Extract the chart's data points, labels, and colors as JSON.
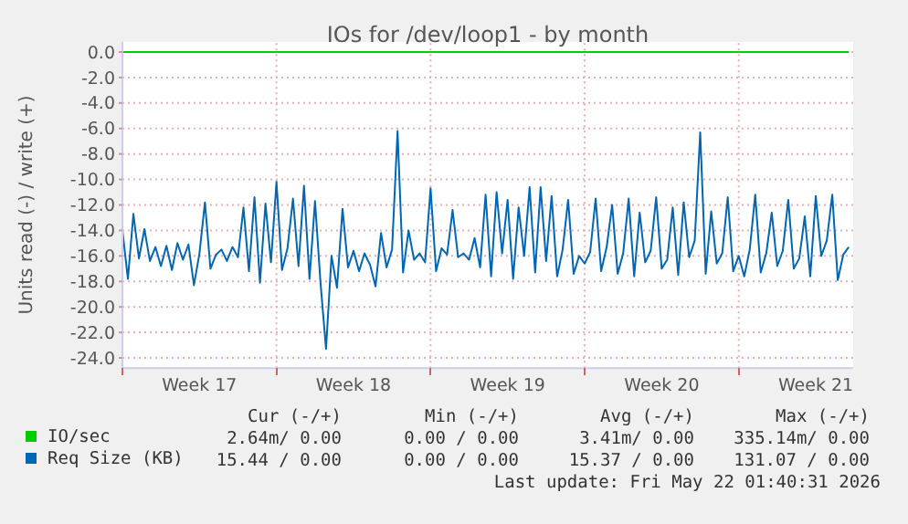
{
  "chart_data": {
    "type": "line",
    "title": "IOs for /dev/loop1 - by month",
    "ylabel": "Units read (-) / write (+)",
    "xlim": [
      "2026-04-20T00:00",
      "2026-05-23T04:48"
    ],
    "xticks": [
      {
        "value": "2026-04-20T00:00",
        "label": null
      },
      {
        "value": "2026-04-23T12:00",
        "label": "Week 17"
      },
      {
        "value": "2026-04-27T00:00",
        "label": null
      },
      {
        "value": "2026-04-30T12:00",
        "label": "Week 18"
      },
      {
        "value": "2026-05-04T00:00",
        "label": null
      },
      {
        "value": "2026-05-07T12:00",
        "label": "Week 19"
      },
      {
        "value": "2026-05-11T00:00",
        "label": null
      },
      {
        "value": "2026-05-14T12:00",
        "label": "Week 20"
      },
      {
        "value": "2026-05-18T00:00",
        "label": null
      },
      {
        "value": "2026-05-21T12:00",
        "label": "Week 21"
      }
    ],
    "ylim": [
      -24.8,
      0.8
    ],
    "yticks": [
      {
        "value": 0,
        "label": "0.0"
      },
      {
        "value": -2,
        "label": "-2.0"
      },
      {
        "value": -4,
        "label": "-4.0"
      },
      {
        "value": -6,
        "label": "-6.0"
      },
      {
        "value": -8,
        "label": "-8.0"
      },
      {
        "value": -10,
        "label": "-10.0"
      },
      {
        "value": -12,
        "label": "-12.0"
      },
      {
        "value": -14,
        "label": "-14.0"
      },
      {
        "value": -16,
        "label": "-16.0"
      },
      {
        "value": -18,
        "label": "-18.0"
      },
      {
        "value": -20,
        "label": "-20.0"
      },
      {
        "value": -22,
        "label": "-22.0"
      },
      {
        "value": -24,
        "label": "-24.0"
      }
    ],
    "grid": true,
    "legend": "bottom",
    "x": [
      "2026-04-20T00:00",
      "2026-04-20T06:00",
      "2026-04-20T12:00",
      "2026-04-20T18:00",
      "2026-04-21T00:00",
      "2026-04-21T06:00",
      "2026-04-21T12:00",
      "2026-04-21T18:00",
      "2026-04-22T00:00",
      "2026-04-22T06:00",
      "2026-04-22T12:00",
      "2026-04-22T18:00",
      "2026-04-23T00:00",
      "2026-04-23T06:00",
      "2026-04-23T12:00",
      "2026-04-23T18:00",
      "2026-04-24T00:00",
      "2026-04-24T06:00",
      "2026-04-24T12:00",
      "2026-04-24T18:00",
      "2026-04-25T00:00",
      "2026-04-25T06:00",
      "2026-04-25T12:00",
      "2026-04-25T18:00",
      "2026-04-26T00:00",
      "2026-04-26T06:00",
      "2026-04-26T12:00",
      "2026-04-26T18:00",
      "2026-04-27T00:00",
      "2026-04-27T06:00",
      "2026-04-27T12:00",
      "2026-04-27T18:00",
      "2026-04-28T00:00",
      "2026-04-28T06:00",
      "2026-04-28T12:00",
      "2026-04-28T18:00",
      "2026-04-29T00:00",
      "2026-04-29T06:00",
      "2026-04-29T12:00",
      "2026-04-29T18:00",
      "2026-04-30T00:00",
      "2026-04-30T06:00",
      "2026-04-30T12:00",
      "2026-04-30T18:00",
      "2026-05-01T00:00",
      "2026-05-01T06:00",
      "2026-05-01T12:00",
      "2026-05-01T18:00",
      "2026-05-02T00:00",
      "2026-05-02T06:00",
      "2026-05-02T12:00",
      "2026-05-02T18:00",
      "2026-05-03T00:00",
      "2026-05-03T06:00",
      "2026-05-03T12:00",
      "2026-05-03T18:00",
      "2026-05-04T00:00",
      "2026-05-04T06:00",
      "2026-05-04T12:00",
      "2026-05-04T18:00",
      "2026-05-05T00:00",
      "2026-05-05T06:00",
      "2026-05-05T12:00",
      "2026-05-05T18:00",
      "2026-05-06T00:00",
      "2026-05-06T06:00",
      "2026-05-06T12:00",
      "2026-05-06T18:00",
      "2026-05-07T00:00",
      "2026-05-07T06:00",
      "2026-05-07T12:00",
      "2026-05-07T18:00",
      "2026-05-08T00:00",
      "2026-05-08T06:00",
      "2026-05-08T12:00",
      "2026-05-08T18:00",
      "2026-05-09T00:00",
      "2026-05-09T06:00",
      "2026-05-09T12:00",
      "2026-05-09T18:00",
      "2026-05-10T00:00",
      "2026-05-10T06:00",
      "2026-05-10T12:00",
      "2026-05-10T18:00",
      "2026-05-11T00:00",
      "2026-05-11T06:00",
      "2026-05-11T12:00",
      "2026-05-11T18:00",
      "2026-05-12T00:00",
      "2026-05-12T06:00",
      "2026-05-12T12:00",
      "2026-05-12T18:00",
      "2026-05-13T00:00",
      "2026-05-13T06:00",
      "2026-05-13T12:00",
      "2026-05-13T18:00",
      "2026-05-14T00:00",
      "2026-05-14T06:00",
      "2026-05-14T12:00",
      "2026-05-14T18:00",
      "2026-05-15T00:00",
      "2026-05-15T06:00",
      "2026-05-15T12:00",
      "2026-05-15T18:00",
      "2026-05-16T00:00",
      "2026-05-16T06:00",
      "2026-05-16T12:00",
      "2026-05-16T18:00",
      "2026-05-17T00:00",
      "2026-05-17T06:00",
      "2026-05-17T12:00",
      "2026-05-17T18:00",
      "2026-05-18T00:00",
      "2026-05-18T06:00",
      "2026-05-18T12:00",
      "2026-05-18T18:00",
      "2026-05-19T00:00",
      "2026-05-19T06:00",
      "2026-05-19T12:00",
      "2026-05-19T18:00",
      "2026-05-20T00:00",
      "2026-05-20T06:00",
      "2026-05-20T12:00",
      "2026-05-20T18:00",
      "2026-05-21T00:00",
      "2026-05-21T06:00",
      "2026-05-21T12:00",
      "2026-05-21T18:00",
      "2026-05-22T00:00",
      "2026-05-22T06:00",
      "2026-05-22T12:00",
      "2026-05-22T18:00",
      "2026-05-23T00:00"
    ],
    "series": [
      {
        "name": "IO/sec",
        "color": "#00cc00",
        "x": [
          "2026-04-20T00:00",
          "2026-05-23T00:00"
        ],
        "values": [
          0,
          0
        ]
      },
      {
        "name": "Req Size (KB)",
        "color": "#0066b3",
        "values": [
          -14.0,
          -17.8,
          -12.7,
          -16.2,
          -13.9,
          -16.4,
          -15.3,
          -16.8,
          -15.2,
          -17.1,
          -15.0,
          -16.3,
          -15.1,
          -18.3,
          -15.8,
          -11.8,
          -17.0,
          -15.9,
          -15.5,
          -16.4,
          -15.3,
          -16.1,
          -12.2,
          -17.2,
          -11.4,
          -18.1,
          -11.9,
          -16.5,
          -10.2,
          -17.1,
          -15.4,
          -11.5,
          -16.8,
          -10.5,
          -17.8,
          -11.7,
          -18.1,
          -23.3,
          -16.0,
          -18.5,
          -12.3,
          -16.9,
          -15.6,
          -17.2,
          -15.8,
          -16.7,
          -18.4,
          -14.2,
          -16.9,
          -15.5,
          -6.2,
          -17.3,
          -14.0,
          -16.3,
          -15.8,
          -16.5,
          -10.7,
          -17.2,
          -15.4,
          -15.9,
          -12.4,
          -16.1,
          -15.8,
          -16.3,
          -14.6,
          -16.9,
          -11.2,
          -17.6,
          -11.0,
          -15.8,
          -11.6,
          -17.8,
          -12.2,
          -16.0,
          -10.6,
          -17.3,
          -10.6,
          -16.4,
          -11.3,
          -17.6,
          -15.5,
          -11.6,
          -17.4,
          -16.0,
          -16.6,
          -15.7,
          -11.5,
          -17.2,
          -15.3,
          -12.0,
          -17.4,
          -15.8,
          -11.5,
          -17.6,
          -12.6,
          -16.5,
          -15.6,
          -11.4,
          -17.0,
          -16.3,
          -12.2,
          -17.5,
          -11.8,
          -16.1,
          -14.8,
          -6.3,
          -17.4,
          -12.5,
          -16.6,
          -15.8,
          -11.4,
          -17.2,
          -16.0,
          -17.6,
          -15.5,
          -11.2,
          -17.3,
          -15.8,
          -12.6,
          -16.8,
          -15.6,
          -11.6,
          -17.0,
          -16.2,
          -12.9,
          -17.6,
          -11.3,
          -16.0,
          -14.8,
          -11.2,
          -17.9,
          -15.9,
          -15.3
        ]
      }
    ],
    "annotations": [
      "Cur (-/+)",
      "Min (-/+)",
      "Avg (-/+)",
      "Max (-/+)",
      "2.64m/ 0.00",
      "0.00 / 0.00",
      "3.41m/ 0.00",
      "335.14m/ 0.00",
      "15.44 / 0.00",
      "0.00 / 0.00",
      "15.37 / 0.00",
      "131.07 / 0.00",
      "Last update: Fri May 22 01:40:31 2026"
    ]
  }
}
